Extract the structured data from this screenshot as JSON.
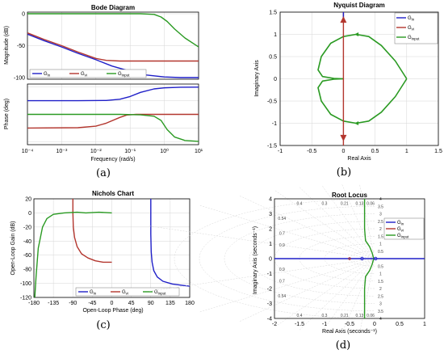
{
  "colors": {
    "g_in": "#1f1fc8",
    "g_vi": "#b3362e",
    "g_input": "#2a9a22",
    "grid": "#d6d6d6"
  },
  "chart_data": [
    {
      "type": "line",
      "caption": "(a)",
      "title": "Bode Diagram",
      "xlabel": "Frequency  (rad/s)",
      "x_scale": "log",
      "xlim": [
        0.0001,
        10
      ],
      "x_ticks": [
        "10⁻⁴",
        "10⁻³",
        "10⁻²",
        "10⁻¹",
        "10⁰",
        "10¹"
      ],
      "legend_position": "bottom of magnitude panel",
      "legend": [
        {
          "base": "G",
          "sub": "in",
          "color": "g_in"
        },
        {
          "base": "G",
          "sub": "vi",
          "color": "g_vi"
        },
        {
          "base": "G",
          "sub": "input",
          "color": "g_input"
        }
      ],
      "magnitude": {
        "ylabel": "Magnitude (dB)",
        "ylim": [
          -100,
          0
        ],
        "y_ticks": [
          "0",
          "-50",
          "-100"
        ],
        "series": [
          {
            "color": "g_in",
            "x": [
              0.0001,
              0.0003,
              0.001,
              0.003,
              0.01,
              0.03,
              0.1,
              0.3,
              1,
              3,
              10
            ],
            "y": [
              -32,
              -42,
              -52,
              -62,
              -72,
              -82,
              -90,
              -96,
              -99,
              -100,
              -100
            ]
          },
          {
            "color": "g_vi",
            "x": [
              0.0001,
              0.0003,
              0.001,
              0.003,
              0.01,
              0.02,
              0.05,
              0.1,
              0.3,
              1,
              10
            ],
            "y": [
              -30,
              -40,
              -50,
              -60,
              -70,
              -73,
              -74,
              -74,
              -74,
              -74,
              -74
            ]
          },
          {
            "color": "g_input",
            "x": [
              0.0001,
              0.01,
              0.2,
              0.5,
              0.8,
              1.2,
              2,
              4,
              10
            ],
            "y": [
              0,
              0,
              0,
              -1,
              -5,
              -12,
              -24,
              -38,
              -52
            ]
          }
        ]
      },
      "phase": {
        "ylabel": "Phase (deg)",
        "ylim": [
          -200,
          200
        ],
        "series": [
          {
            "color": "g_in",
            "x": [
              0.0001,
              0.003,
              0.02,
              0.05,
              0.1,
              0.2,
              0.5,
              1,
              3,
              10
            ],
            "y": [
              90,
              90,
              92,
              100,
              118,
              145,
              168,
              175,
              179,
              180
            ]
          },
          {
            "color": "g_vi",
            "x": [
              0.0001,
              0.003,
              0.01,
              0.02,
              0.05,
              0.08,
              0.15,
              0.3,
              1,
              10
            ],
            "y": [
              -90,
              -88,
              -78,
              -58,
              -20,
              -4,
              0,
              0,
              0,
              0
            ]
          },
          {
            "color": "g_input",
            "x": [
              0.0001,
              0.05,
              0.2,
              0.5,
              0.8,
              1.2,
              2,
              4,
              10
            ],
            "y": [
              0,
              0,
              -3,
              -12,
              -40,
              -100,
              -150,
              -172,
              -178
            ]
          }
        ]
      }
    },
    {
      "type": "line",
      "caption": "(b)",
      "title": "Nyquist Diagram",
      "xlabel": "Real Axis",
      "ylabel": "Imaginary Axis",
      "xlim": [
        -1,
        1.5
      ],
      "ylim": [
        -1.5,
        1.5
      ],
      "x_ticks": [
        "-1",
        "-0.5",
        "0",
        "0.5",
        "1",
        "1.5"
      ],
      "y_ticks": [
        "1.5",
        "1",
        "0.5",
        "0",
        "-0.5",
        "-1",
        "-1.5"
      ],
      "legend_position": "top-right",
      "legend": [
        {
          "base": "G",
          "sub": "in",
          "color": "g_in"
        },
        {
          "base": "G",
          "sub": "vi",
          "color": "g_vi"
        },
        {
          "base": "G",
          "sub": "input",
          "color": "g_input"
        }
      ],
      "series": [
        {
          "color": "g_input",
          "x": [
            1,
            0.82,
            0.6,
            0.4,
            0.2,
            0,
            -0.2,
            -0.35,
            -0.4,
            -0.33,
            -0.15,
            0
          ],
          "y": [
            0,
            0.4,
            0.75,
            0.95,
            1.0,
            0.95,
            0.8,
            0.5,
            0.2,
            0.05,
            0.01,
            0
          ]
        },
        {
          "color": "g_input",
          "x": [
            1,
            0.82,
            0.6,
            0.4,
            0.2,
            0,
            -0.2,
            -0.35,
            -0.4,
            -0.33,
            -0.15,
            0
          ],
          "y": [
            0,
            -0.4,
            -0.75,
            -0.95,
            -1.0,
            -0.95,
            -0.8,
            -0.5,
            -0.2,
            -0.05,
            -0.01,
            0
          ]
        },
        {
          "color": "g_vi",
          "x": [
            0,
            0
          ],
          "y": [
            -1.5,
            1.5
          ]
        },
        {
          "color": "g_in",
          "x": [
            0,
            0
          ],
          "y": [
            1.35,
            1.5
          ]
        }
      ]
    },
    {
      "type": "line",
      "caption": "(c)",
      "title": "Nichols Chart",
      "xlabel": "Open-Loop Phase (deg)",
      "ylabel": "Open-Loop Gain (dB)",
      "xlim": [
        -180,
        180
      ],
      "ylim": [
        -120,
        20
      ],
      "x_ticks": [
        "-180",
        "-135",
        "-90",
        "-45",
        "0",
        "45",
        "90",
        "135",
        "180"
      ],
      "y_ticks": [
        "20",
        "0",
        "-20",
        "-40",
        "-60",
        "-80",
        "-100",
        "-120"
      ],
      "legend_position": "bottom",
      "legend": [
        {
          "base": "G",
          "sub": "in",
          "color": "g_in"
        },
        {
          "base": "G",
          "sub": "vi",
          "color": "g_vi"
        },
        {
          "base": "G",
          "sub": "input",
          "color": "g_input"
        }
      ],
      "series": [
        {
          "color": "g_in",
          "x": [
            90,
            90,
            91,
            93,
            97,
            105,
            118,
            140,
            165,
            180
          ],
          "y": [
            20,
            -30,
            -55,
            -70,
            -82,
            -91,
            -97,
            -101,
            -103,
            -104
          ]
        },
        {
          "color": "g_vi",
          "x": [
            -90,
            -90,
            -89,
            -86,
            -80,
            -70,
            -55,
            -38,
            -20,
            0
          ],
          "y": [
            20,
            0,
            -20,
            -35,
            -48,
            -58,
            -64,
            -68,
            -70,
            -70
          ]
        },
        {
          "color": "g_input",
          "x": [
            -178,
            -175,
            -170,
            -160,
            -150,
            -135,
            -110,
            -80,
            -60,
            -30,
            0
          ],
          "y": [
            -120,
            -90,
            -50,
            -20,
            -8,
            -2,
            0,
            1,
            0,
            1,
            0
          ]
        }
      ]
    },
    {
      "type": "scatter",
      "caption": "(d)",
      "title": "Root Locus",
      "xlabel": "Real Axis (seconds⁻¹)",
      "ylabel": "Imaginary Axis (seconds⁻¹)",
      "xlim": [
        -2,
        1
      ],
      "ylim": [
        -4,
        4
      ],
      "x_ticks": [
        "-2",
        "-1.5",
        "-1",
        "-0.5",
        "0",
        "0.5",
        "1"
      ],
      "y_ticks": [
        "4",
        "3",
        "2",
        "1",
        "0",
        "-1",
        "-2",
        "-3",
        "-4"
      ],
      "grid": "damping/frequency grid",
      "damping_labels": [
        "0.4",
        "0.3",
        "0.21",
        "0.13",
        "0.06",
        "0.54",
        "0.7",
        "0.9"
      ],
      "freq_labels": [
        "4",
        "3.5",
        "3",
        "2.5",
        "2",
        "1.5",
        "1",
        "0.5"
      ],
      "legend_position": "top-right",
      "legend": [
        {
          "base": "G",
          "sub": "in",
          "color": "g_in"
        },
        {
          "base": "G",
          "sub": "vi",
          "color": "g_vi"
        },
        {
          "base": "G",
          "sub": "input",
          "color": "g_input"
        }
      ],
      "series": [
        {
          "color": "g_in",
          "x": [
            -2,
            1
          ],
          "y": [
            0,
            0
          ]
        },
        {
          "color": "g_input",
          "x": [
            -0.02,
            -0.05,
            -0.1,
            -0.18,
            -0.2,
            -0.2
          ],
          "y": [
            0.02,
            0.4,
            0.8,
            1.2,
            2,
            4
          ]
        },
        {
          "color": "g_input",
          "x": [
            -0.02,
            -0.05,
            -0.1,
            -0.18,
            -0.2,
            -0.2
          ],
          "y": [
            -0.02,
            -0.4,
            -0.8,
            -1.2,
            -2,
            -4
          ]
        }
      ]
    }
  ]
}
